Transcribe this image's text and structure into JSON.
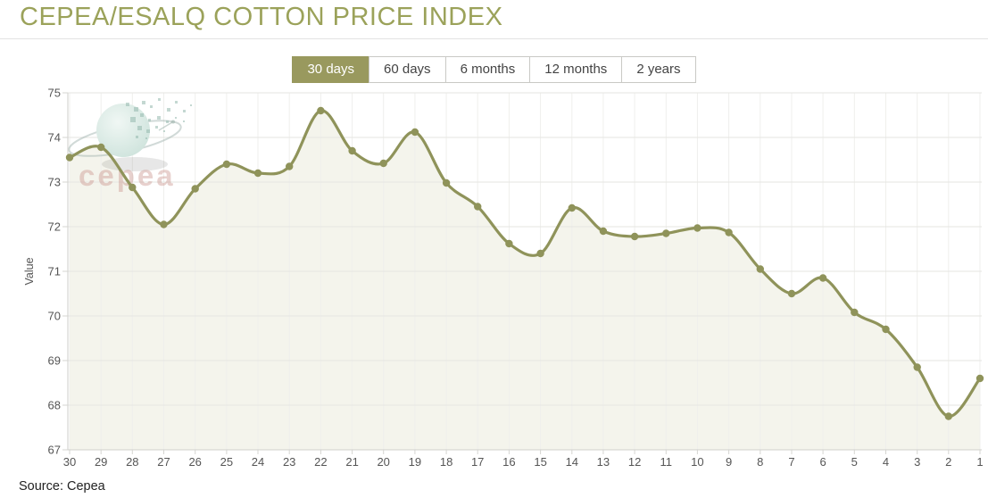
{
  "header": {
    "title": "CEPEA/ESALQ COTTON PRICE INDEX"
  },
  "controls": {
    "ranges": [
      {
        "label": "30 days",
        "active": true
      },
      {
        "label": "60 days",
        "active": false
      },
      {
        "label": "6 months",
        "active": false
      },
      {
        "label": "12 months",
        "active": false
      },
      {
        "label": "2 years",
        "active": false
      }
    ]
  },
  "watermark": {
    "label": "cepea"
  },
  "footer": {
    "source": "Source: Cepea"
  },
  "colors": {
    "accent": "#99995e",
    "title": "#9ba25a",
    "line": "#8f935a",
    "area": "#f4f4ec",
    "h_grid": "#e6e6e2",
    "v_grid": "#efefec",
    "axis": "#cfcfcb",
    "tick_text": "#555555"
  },
  "chart_data": {
    "type": "area",
    "title": "",
    "xlabel": "",
    "ylabel": "Value",
    "x_note": "days ago, descending left to right",
    "categories": [
      "30",
      "29",
      "28",
      "27",
      "26",
      "25",
      "24",
      "23",
      "22",
      "21",
      "20",
      "19",
      "18",
      "17",
      "16",
      "15",
      "14",
      "13",
      "12",
      "11",
      "10",
      "9",
      "8",
      "7",
      "6",
      "5",
      "4",
      "3",
      "2",
      "1"
    ],
    "values": [
      73.55,
      73.78,
      72.88,
      72.05,
      72.85,
      73.4,
      73.2,
      73.35,
      74.6,
      73.7,
      73.42,
      74.12,
      72.98,
      72.45,
      71.62,
      71.4,
      72.42,
      71.9,
      71.78,
      71.85,
      71.97,
      71.87,
      71.05,
      70.5,
      70.85,
      70.08,
      69.7,
      68.85,
      67.75,
      68.6
    ],
    "ylim": [
      67,
      75
    ],
    "y_tick_interval": 1,
    "grid": true,
    "legend": false,
    "marker": "circle",
    "smoothing": "spline"
  }
}
